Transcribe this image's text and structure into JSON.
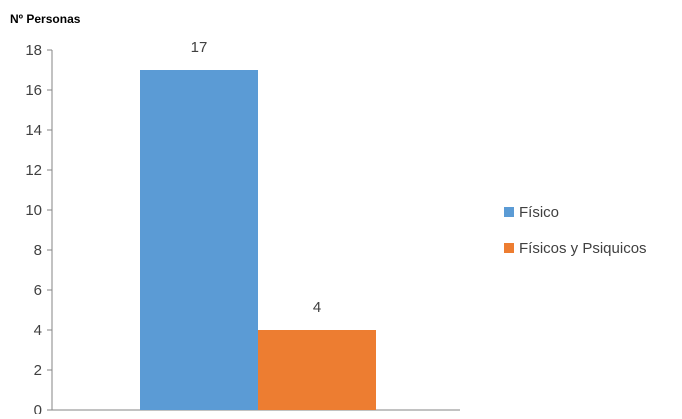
{
  "chart_data": {
    "type": "bar",
    "ylabel": "Nº Personas",
    "categories": [
      ""
    ],
    "series": [
      {
        "name": "Físico",
        "values": [
          17
        ],
        "color": "#5b9bd5"
      },
      {
        "name": "Físicos y Psiquicos",
        "values": [
          4
        ],
        "color": "#ed7d31"
      }
    ],
    "ylim": [
      0,
      18
    ],
    "yticks": [
      "0",
      "2",
      "4",
      "6",
      "8",
      "10",
      "12",
      "14",
      "16",
      "18"
    ],
    "data_labels": [
      "17",
      "4"
    ],
    "grid": false,
    "legend_position": "right"
  }
}
